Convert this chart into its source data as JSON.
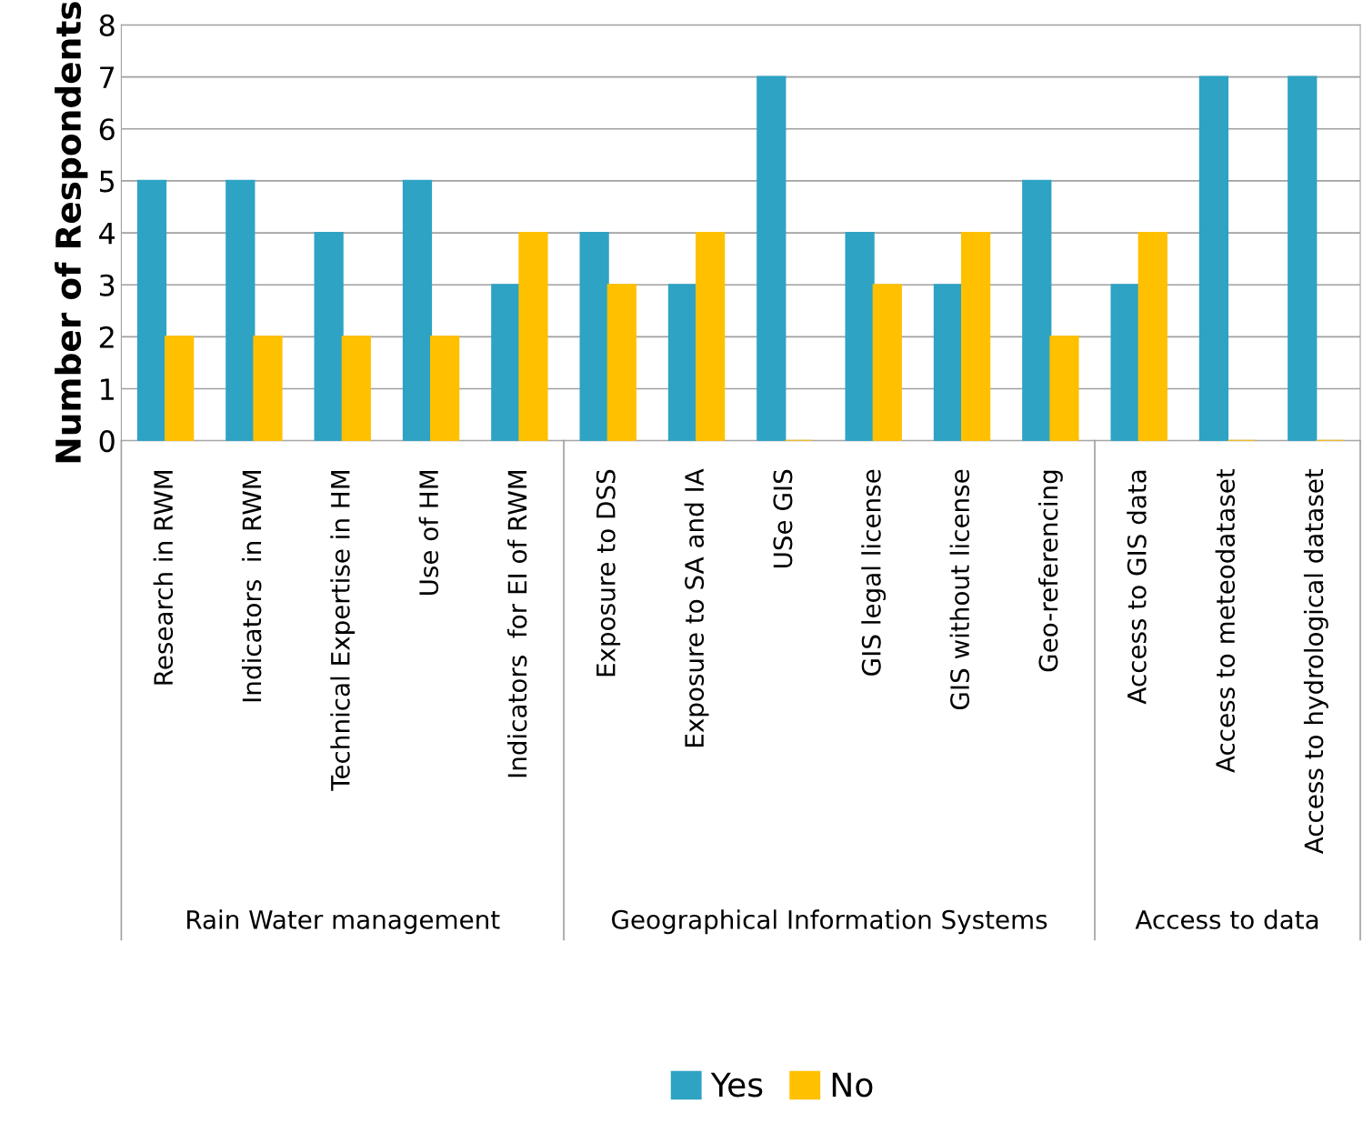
{
  "chart_data": {
    "type": "bar",
    "ylabel": "Number of Respondents",
    "categories": [
      "Research in RWM",
      "Indicators  in RWM",
      "Technical Expertise in HM",
      "Use of HM",
      "Indicators  for EI of RWM",
      "Exposure to DSS",
      "Exposure to SA and IA",
      "USe GIS",
      "GIS legal license",
      "GIS without license",
      "Geo-referencing",
      "Access to GIS data",
      "Access to meteodataset",
      "Access to hydrological dataset"
    ],
    "series": [
      {
        "name": "Yes",
        "color": "#2ea3c4",
        "values": [
          5,
          5,
          4,
          5,
          3,
          4,
          3,
          7,
          4,
          3,
          5,
          3,
          7,
          7
        ]
      },
      {
        "name": "No",
        "color": "#ffc000",
        "values": [
          2,
          2,
          2,
          2,
          4,
          3,
          4,
          0,
          3,
          4,
          2,
          4,
          0,
          0
        ]
      }
    ],
    "annotations": [
      "Rain Water management",
      "Geographical Information Systems",
      "Access to data"
    ],
    "ylim": [
      0,
      8
    ],
    "yticks": [
      0,
      1,
      2,
      3,
      4,
      5,
      6,
      7,
      8
    ],
    "grid": "y",
    "legend": "bottom"
  }
}
